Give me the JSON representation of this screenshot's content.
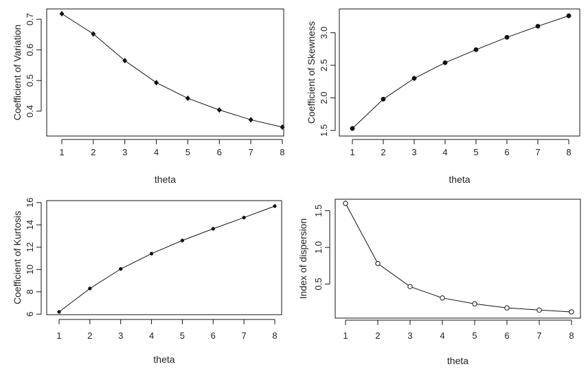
{
  "chart_data": [
    {
      "type": "line",
      "xlabel": "theta",
      "ylabel": "Coefficient of Variation",
      "x": [
        1,
        2,
        3,
        4,
        5,
        6,
        7,
        8
      ],
      "values": [
        0.718,
        0.652,
        0.565,
        0.493,
        0.442,
        0.404,
        0.372,
        0.348
      ],
      "xlim": [
        1,
        8
      ],
      "ylim": [
        0.348,
        0.718
      ],
      "xticks": [
        1,
        2,
        3,
        4,
        5,
        6,
        7,
        8
      ],
      "yticks": [
        0.4,
        0.5,
        0.6,
        0.7
      ],
      "marker": "filled-diamond",
      "grid": false
    },
    {
      "type": "line",
      "xlabel": "theta",
      "ylabel": "Coefficient of Skewness",
      "x": [
        1,
        2,
        3,
        4,
        5,
        6,
        7,
        8
      ],
      "values": [
        1.53,
        1.98,
        2.3,
        2.54,
        2.74,
        2.93,
        3.1,
        3.26
      ],
      "xlim": [
        1,
        8
      ],
      "ylim": [
        1.53,
        3.26
      ],
      "xticks": [
        1,
        2,
        3,
        4,
        5,
        6,
        7,
        8
      ],
      "yticks": [
        1.5,
        2.0,
        2.5,
        3.0
      ],
      "marker": "filled-circle",
      "grid": false
    },
    {
      "type": "line",
      "xlabel": "theta",
      "ylabel": "Coefficient of Kurtosis",
      "x": [
        1,
        2,
        3,
        4,
        5,
        6,
        7,
        8
      ],
      "values": [
        6.2,
        8.3,
        10.05,
        11.42,
        12.6,
        13.65,
        14.65,
        15.68
      ],
      "xlim": [
        1,
        8
      ],
      "ylim": [
        6.2,
        15.68
      ],
      "xticks": [
        1,
        2,
        3,
        4,
        5,
        6,
        7,
        8
      ],
      "yticks": [
        6,
        8,
        10,
        12,
        14,
        16
      ],
      "marker": "small-filled-circle",
      "grid": false
    },
    {
      "type": "line",
      "xlabel": "theta",
      "ylabel": "Index of dispersion",
      "x": [
        1,
        2,
        3,
        4,
        5,
        6,
        7,
        8
      ],
      "values": [
        1.6,
        0.78,
        0.465,
        0.31,
        0.23,
        0.175,
        0.145,
        0.12
      ],
      "xlim": [
        1,
        8
      ],
      "ylim": [
        0.12,
        1.6
      ],
      "xticks": [
        1,
        2,
        3,
        4,
        5,
        6,
        7,
        8
      ],
      "yticks": [
        0.5,
        1.0,
        1.5
      ],
      "marker": "open-circle",
      "grid": false
    }
  ]
}
